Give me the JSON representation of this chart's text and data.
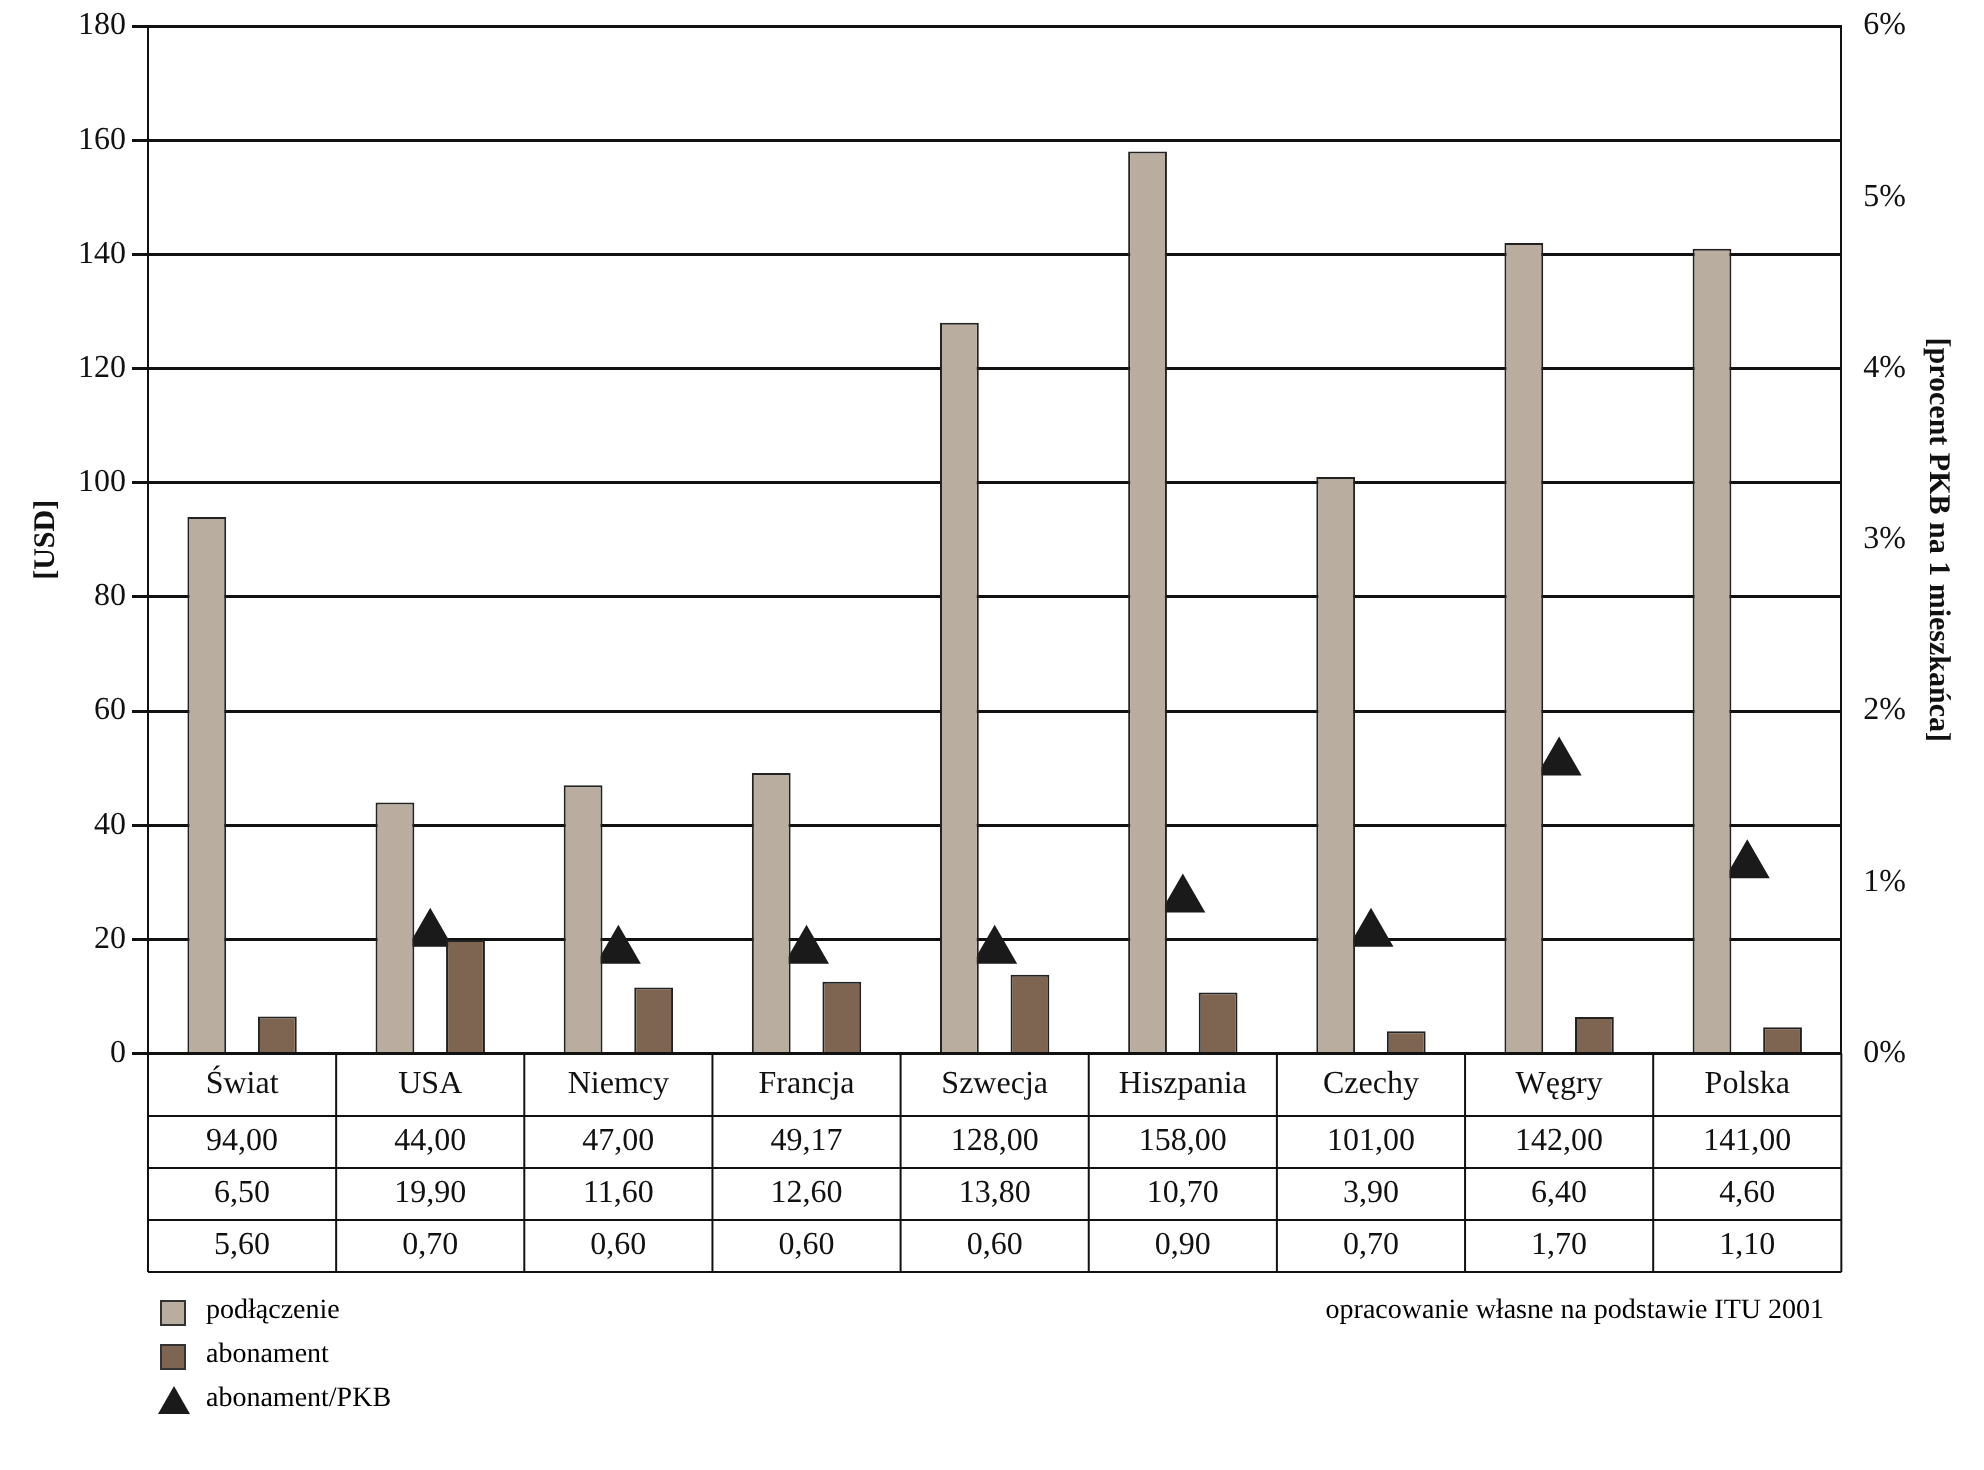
{
  "chart_data": {
    "type": "bar",
    "categories": [
      "Świat",
      "USA",
      "Niemcy",
      "Francja",
      "Szwecja",
      "Hiszpania",
      "Czechy",
      "Węgry",
      "Polska"
    ],
    "series": [
      {
        "name": "podłączenie",
        "color": "#b8ad9e",
        "values": [
          94,
          44,
          47,
          49.17,
          128,
          158,
          101,
          142,
          141
        ],
        "value_labels": [
          "94,00",
          "44,00",
          "47,00",
          "49,17",
          "128,00",
          "158,00",
          "101,00",
          "142,00",
          "141,00"
        ]
      },
      {
        "name": "abonament",
        "color": "#7d6552",
        "values": [
          6.5,
          19.9,
          11.6,
          12.6,
          13.8,
          10.7,
          3.9,
          6.4,
          4.6
        ],
        "value_labels": [
          "6,50",
          "19,90",
          "11,60",
          "12,60",
          "13,80",
          "10,70",
          "3,90",
          "6,40",
          "4,60"
        ]
      },
      {
        "name": "abonament/PKB",
        "type": "scatter",
        "axis": "y2",
        "marker": "triangle",
        "color": "#1a1a1a",
        "values": [
          null,
          0.7,
          0.6,
          0.6,
          0.6,
          0.9,
          0.7,
          1.7,
          1.1
        ],
        "value_labels": [
          "5,60",
          "0,70",
          "0,60",
          "0,60",
          "0,60",
          "0,90",
          "0,70",
          "1,70",
          "1,10"
        ]
      }
    ],
    "ylabel": "[USD]",
    "y2label": "[procent PKB na 1 mieszkańca]",
    "ylim": [
      0,
      180
    ],
    "yticks": [
      0,
      20,
      40,
      60,
      80,
      100,
      120,
      140,
      160,
      180
    ],
    "y2lim": [
      0,
      6
    ],
    "y2ticks": [
      {
        "value": 0,
        "label": "0%"
      },
      {
        "value": 1,
        "label": "1%"
      },
      {
        "value": 2,
        "label": "2%"
      },
      {
        "value": 3,
        "label": "3%"
      },
      {
        "value": 4,
        "label": "4%"
      },
      {
        "value": 5,
        "label": "5%"
      },
      {
        "value": 6,
        "label": "6%"
      }
    ],
    "grid": "y",
    "legend": "bottom left",
    "annotations": [
      "opracowanie własne na podstawie ITU 2001"
    ]
  }
}
